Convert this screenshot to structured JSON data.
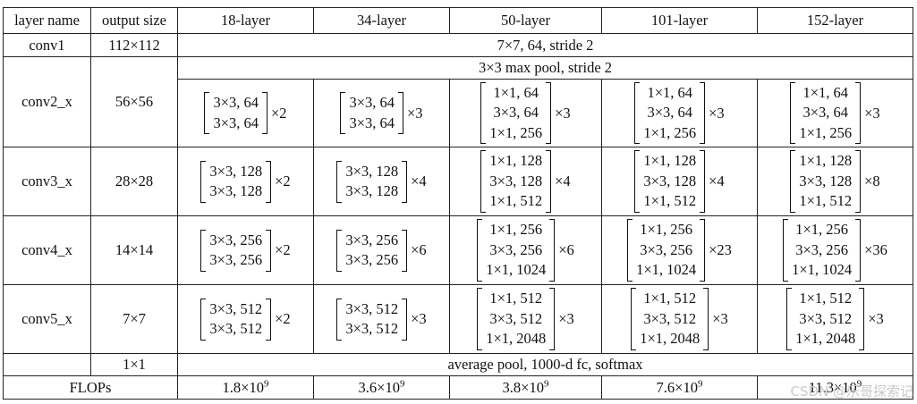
{
  "header": {
    "layer_name": "layer name",
    "output_size": "output size",
    "variants": [
      "18-layer",
      "34-layer",
      "50-layer",
      "101-layer",
      "152-layer"
    ]
  },
  "conv1": {
    "name": "conv1",
    "size": "112×112",
    "spec": "7×7, 64, stride 2"
  },
  "pool": {
    "spec": "3×3 max pool, stride 2"
  },
  "stages": [
    {
      "name": "conv2_x",
      "size": "56×56",
      "blocks": [
        {
          "lines": [
            "3×3, 64",
            "3×3, 64"
          ],
          "mult": "×2"
        },
        {
          "lines": [
            "3×3, 64",
            "3×3, 64"
          ],
          "mult": "×3"
        },
        {
          "lines": [
            "1×1, 64",
            "3×3, 64",
            "1×1, 256"
          ],
          "mult": "×3"
        },
        {
          "lines": [
            "1×1, 64",
            "3×3, 64",
            "1×1, 256"
          ],
          "mult": "×3"
        },
        {
          "lines": [
            "1×1, 64",
            "3×3, 64",
            "1×1, 256"
          ],
          "mult": "×3"
        }
      ]
    },
    {
      "name": "conv3_x",
      "size": "28×28",
      "blocks": [
        {
          "lines": [
            "3×3, 128",
            "3×3, 128"
          ],
          "mult": "×2"
        },
        {
          "lines": [
            "3×3, 128",
            "3×3, 128"
          ],
          "mult": "×4"
        },
        {
          "lines": [
            "1×1, 128",
            "3×3, 128",
            "1×1, 512"
          ],
          "mult": "×4"
        },
        {
          "lines": [
            "1×1, 128",
            "3×3, 128",
            "1×1, 512"
          ],
          "mult": "×4"
        },
        {
          "lines": [
            "1×1, 128",
            "3×3, 128",
            "1×1, 512"
          ],
          "mult": "×8"
        }
      ]
    },
    {
      "name": "conv4_x",
      "size": "14×14",
      "blocks": [
        {
          "lines": [
            "3×3, 256",
            "3×3, 256"
          ],
          "mult": "×2"
        },
        {
          "lines": [
            "3×3, 256",
            "3×3, 256"
          ],
          "mult": "×6"
        },
        {
          "lines": [
            "1×1, 256",
            "3×3, 256",
            "1×1, 1024"
          ],
          "mult": "×6"
        },
        {
          "lines": [
            "1×1, 256",
            "3×3, 256",
            "1×1, 1024"
          ],
          "mult": "×23"
        },
        {
          "lines": [
            "1×1, 256",
            "3×3, 256",
            "1×1, 1024"
          ],
          "mult": "×36"
        }
      ]
    },
    {
      "name": "conv5_x",
      "size": "7×7",
      "blocks": [
        {
          "lines": [
            "3×3, 512",
            "3×3, 512"
          ],
          "mult": "×2"
        },
        {
          "lines": [
            "3×3, 512",
            "3×3, 512"
          ],
          "mult": "×3"
        },
        {
          "lines": [
            "1×1, 512",
            "3×3, 512",
            "1×1, 2048"
          ],
          "mult": "×3"
        },
        {
          "lines": [
            "1×1, 512",
            "3×3, 512",
            "1×1, 2048"
          ],
          "mult": "×3"
        },
        {
          "lines": [
            "1×1, 512",
            "3×3, 512",
            "1×1, 2048"
          ],
          "mult": "×3"
        }
      ]
    }
  ],
  "final": {
    "size": "1×1",
    "spec": "average pool, 1000-d fc, softmax"
  },
  "flops": {
    "label": "FLOPs",
    "values": [
      {
        "base": "1.8×10",
        "exp": "9"
      },
      {
        "base": "3.6×10",
        "exp": "9"
      },
      {
        "base": "3.8×10",
        "exp": "9"
      },
      {
        "base": "7.6×10",
        "exp": "9"
      },
      {
        "base": "11.3×10",
        "exp": "9"
      }
    ]
  },
  "watermark": "CSDN @乐哥探索记"
}
